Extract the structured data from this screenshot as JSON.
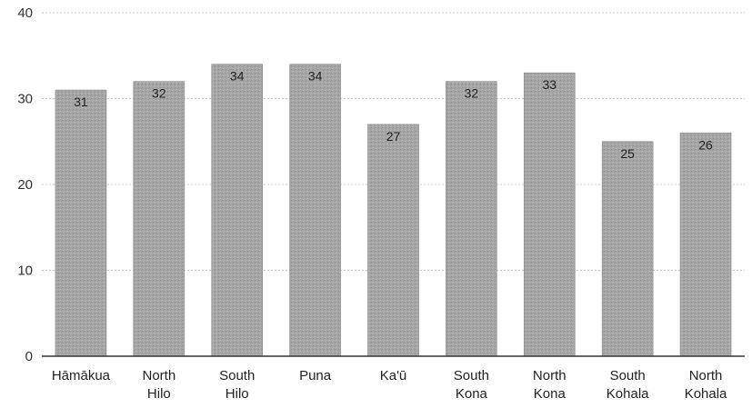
{
  "chart_data": {
    "type": "bar",
    "title": "",
    "xlabel": "",
    "ylabel": "",
    "categories": [
      [
        "Hāmākua"
      ],
      [
        "North",
        "Hilo"
      ],
      [
        "South",
        "Hilo"
      ],
      [
        "Puna"
      ],
      [
        "Ka'ū"
      ],
      [
        "South",
        "Kona"
      ],
      [
        "North",
        "Kona"
      ],
      [
        "South",
        "Kohala"
      ],
      [
        "North",
        "Kohala"
      ]
    ],
    "values": [
      31,
      32,
      34,
      34,
      27,
      32,
      33,
      25,
      26
    ],
    "ylim": [
      0,
      40
    ],
    "yticks": [
      0,
      10,
      20,
      30,
      40
    ],
    "grid": true,
    "legend": "none",
    "data_labels": true,
    "colors": {
      "bar": "#a6a6a6",
      "grid": "#c8c8c8",
      "axis": "#333333"
    }
  }
}
